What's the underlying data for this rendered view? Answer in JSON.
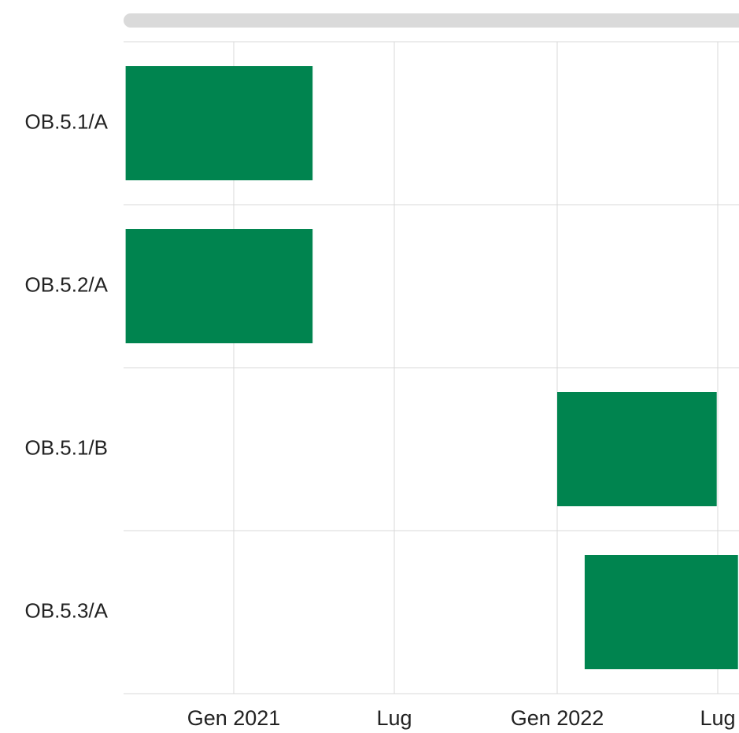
{
  "chart_data": {
    "type": "gantt",
    "title": "",
    "xlabel": "",
    "ylabel": "",
    "x_axis": {
      "ticks": [
        {
          "label": "Gen 2021",
          "date": "2021-01-01"
        },
        {
          "label": "Lug",
          "date": "2021-07-01"
        },
        {
          "label": "Gen 2022",
          "date": "2022-01-01"
        },
        {
          "label": "Lug",
          "date": "2022-07-01"
        }
      ],
      "range": [
        "2020-09-01",
        "2022-07-24"
      ]
    },
    "tasks": [
      {
        "label": "OB.5.1/A",
        "start": "2020-09-01",
        "end": "2021-03-31"
      },
      {
        "label": "OB.5.2/A",
        "start": "2020-09-01",
        "end": "2021-03-31"
      },
      {
        "label": "OB.5.1/B",
        "start": "2022-01-01",
        "end": "2022-06-30"
      },
      {
        "label": "OB.5.3/A",
        "start": "2022-02-01",
        "end": "2022-07-24"
      }
    ],
    "bar_color": "#00844F",
    "grid": true
  },
  "scrollbar": {
    "color": "#DADADA"
  }
}
